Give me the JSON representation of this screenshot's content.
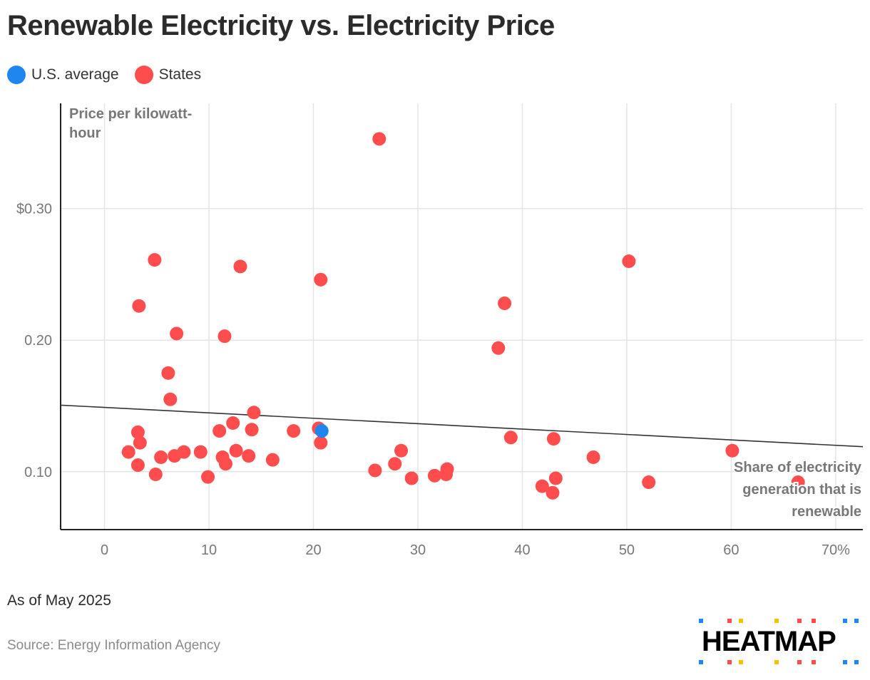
{
  "title": "Renewable Electricity vs. Electricity Price",
  "legend": [
    {
      "label": "U.S. average",
      "color": "#1f86f0"
    },
    {
      "label": "States",
      "color": "#ff4d4d"
    }
  ],
  "chart_data": {
    "type": "scatter",
    "ylabel": "Price per kilowatt-hour",
    "xlabel": "Share of electricity generation that is renewable",
    "x_ticks": [
      "0",
      "10",
      "20",
      "30",
      "40",
      "50",
      "60",
      "70%"
    ],
    "y_ticks": [
      "0.10",
      "0.20",
      "$0.30"
    ],
    "xlim": [
      -4.2,
      72.6
    ],
    "ylim": [
      0.056,
      0.38
    ],
    "grid": true,
    "legend_position": "top-left",
    "series": [
      {
        "name": "U.S. average",
        "color": "#1f86f0",
        "points": [
          [
            20.8,
            0.131
          ]
        ]
      },
      {
        "name": "States",
        "color": "#ff4d4d",
        "points": [
          [
            26.3,
            0.353
          ],
          [
            4.8,
            0.261
          ],
          [
            13.0,
            0.256
          ],
          [
            20.7,
            0.246
          ],
          [
            3.3,
            0.226
          ],
          [
            6.9,
            0.205
          ],
          [
            11.5,
            0.203
          ],
          [
            6.1,
            0.175
          ],
          [
            6.3,
            0.155
          ],
          [
            14.3,
            0.145
          ],
          [
            12.3,
            0.137
          ],
          [
            14.1,
            0.132
          ],
          [
            11.0,
            0.131
          ],
          [
            18.1,
            0.131
          ],
          [
            20.5,
            0.133
          ],
          [
            3.2,
            0.13
          ],
          [
            3.4,
            0.122
          ],
          [
            2.3,
            0.115
          ],
          [
            5.4,
            0.111
          ],
          [
            6.7,
            0.112
          ],
          [
            7.6,
            0.115
          ],
          [
            9.2,
            0.115
          ],
          [
            11.3,
            0.111
          ],
          [
            12.6,
            0.116
          ],
          [
            13.8,
            0.112
          ],
          [
            16.1,
            0.109
          ],
          [
            20.7,
            0.122
          ],
          [
            3.2,
            0.105
          ],
          [
            4.9,
            0.098
          ],
          [
            9.9,
            0.096
          ],
          [
            11.6,
            0.106
          ],
          [
            25.9,
            0.101
          ],
          [
            27.8,
            0.106
          ],
          [
            28.4,
            0.116
          ],
          [
            29.4,
            0.095
          ],
          [
            31.6,
            0.097
          ],
          [
            32.7,
            0.098
          ],
          [
            32.8,
            0.102
          ],
          [
            37.7,
            0.194
          ],
          [
            38.3,
            0.228
          ],
          [
            38.9,
            0.126
          ],
          [
            43.0,
            0.125
          ],
          [
            50.2,
            0.26
          ],
          [
            46.8,
            0.111
          ],
          [
            41.9,
            0.089
          ],
          [
            42.9,
            0.084
          ],
          [
            43.2,
            0.095
          ],
          [
            52.1,
            0.092
          ],
          [
            60.1,
            0.116
          ],
          [
            66.4,
            0.092
          ]
        ]
      }
    ],
    "trendline": {
      "x": [
        -4.2,
        72.6
      ],
      "y": [
        0.1506,
        0.119
      ],
      "color": "#333333"
    }
  },
  "footer": {
    "note": "As of May 2025",
    "source": "Source: Energy Information Agency",
    "logo": "HEATMAP"
  }
}
